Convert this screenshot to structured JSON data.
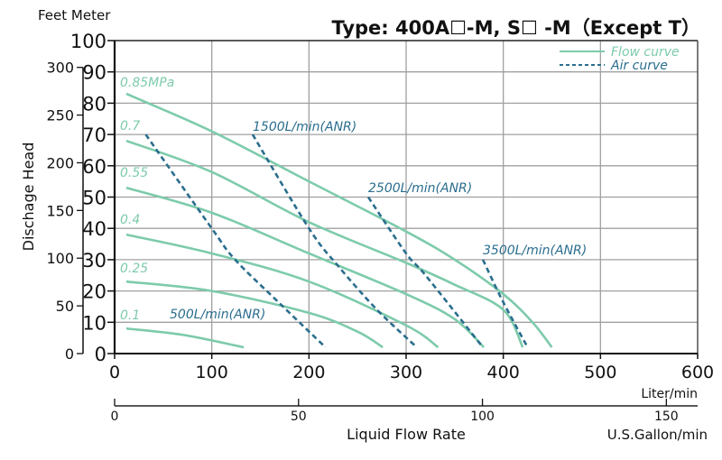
{
  "chart_data": {
    "type": "line",
    "title": "Type: 400A☐-M, S☐ -M（Except T）",
    "ylabel": "Dischage Head",
    "y_units_header": "Feet Meter",
    "xlabel": "Liquid Flow Rate",
    "x_unit_primary": "Liter/min",
    "x_unit_secondary": "U.S.Gallon/min",
    "xlim": [
      0,
      600
    ],
    "ylim": [
      0,
      100
    ],
    "x_ticks": [
      "0",
      "100",
      "200",
      "300",
      "400",
      "500",
      "600"
    ],
    "y_ticks": [
      "0",
      "10",
      "20",
      "30",
      "40",
      "50",
      "60",
      "70",
      "80",
      "90",
      "100"
    ],
    "feet_ticks": [
      "0",
      "50",
      "100",
      "150",
      "200",
      "250",
      "300"
    ],
    "gallon_ticks": [
      "0",
      "50",
      "100",
      "150"
    ],
    "grid": true,
    "legend": {
      "position": "top-right",
      "flow_label": "Flow curve",
      "air_label": "Air curve"
    },
    "colors": {
      "flow": "#7dcbab",
      "air": "#2b6e8e",
      "grid": "#a0a0a0"
    },
    "flow_series": [
      {
        "name": "0.85MPa",
        "points": [
          [
            12,
            83
          ],
          [
            100,
            71
          ],
          [
            200,
            55
          ],
          [
            300,
            39
          ],
          [
            350,
            30
          ],
          [
            400,
            19
          ],
          [
            430,
            10
          ],
          [
            450,
            2
          ]
        ]
      },
      {
        "name": "0.7",
        "points": [
          [
            12,
            68
          ],
          [
            100,
            58
          ],
          [
            200,
            42
          ],
          [
            300,
            29
          ],
          [
            350,
            22
          ],
          [
            400,
            14
          ],
          [
            420,
            2
          ]
        ]
      },
      {
        "name": "0.55",
        "points": [
          [
            12,
            53
          ],
          [
            100,
            45
          ],
          [
            200,
            32
          ],
          [
            300,
            19
          ],
          [
            350,
            11
          ],
          [
            380,
            2
          ]
        ]
      },
      {
        "name": "0.4",
        "points": [
          [
            12,
            38
          ],
          [
            100,
            32
          ],
          [
            200,
            23
          ],
          [
            300,
            9
          ],
          [
            333,
            2
          ]
        ]
      },
      {
        "name": "0.25",
        "points": [
          [
            12,
            23
          ],
          [
            100,
            20
          ],
          [
            200,
            13
          ],
          [
            250,
            7
          ],
          [
            276,
            2
          ]
        ]
      },
      {
        "name": "0.1",
        "points": [
          [
            12,
            8
          ],
          [
            70,
            6
          ],
          [
            133,
            2
          ]
        ]
      }
    ],
    "air_series": [
      {
        "name": "500L/min(ANR)",
        "points": [
          [
            32,
            70
          ],
          [
            100,
            40
          ],
          [
            124,
            30
          ],
          [
            170,
            16
          ],
          [
            217,
            2
          ]
        ]
      },
      {
        "name": "1500L/min(ANR)",
        "points": [
          [
            142,
            70
          ],
          [
            200,
            40
          ],
          [
            230,
            28
          ],
          [
            270,
            14
          ],
          [
            311,
            2
          ]
        ]
      },
      {
        "name": "2500L/min(ANR)",
        "points": [
          [
            261,
            50
          ],
          [
            300,
            32
          ],
          [
            320,
            25
          ],
          [
            379,
            2
          ]
        ]
      },
      {
        "name": "3500L/min(ANR)",
        "points": [
          [
            379,
            30
          ],
          [
            399,
            17
          ],
          [
            425,
            2
          ]
        ]
      }
    ]
  }
}
